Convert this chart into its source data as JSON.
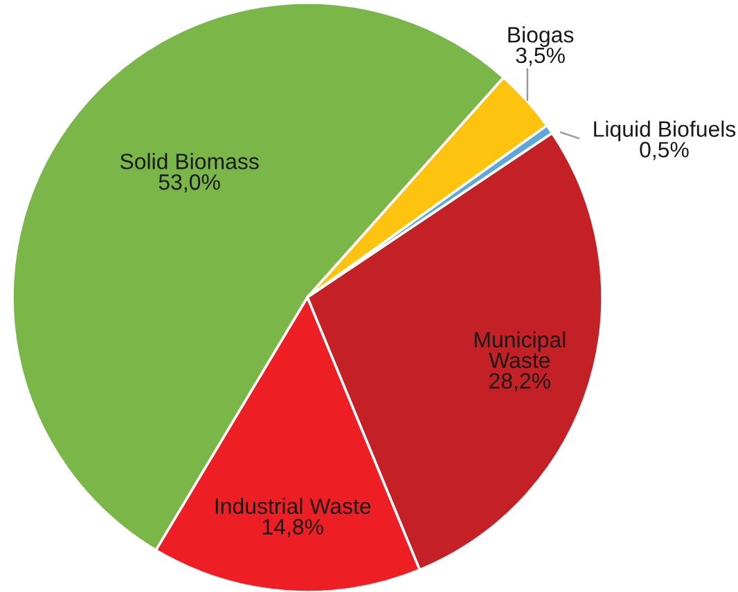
{
  "chart_data": {
    "type": "pie",
    "categories": [
      "Solid Biomass",
      "Biogas",
      "Liquid Biofuels",
      "Municipal Waste",
      "Industrial Waste"
    ],
    "values": [
      53.0,
      3.5,
      0.5,
      28.2,
      14.8
    ],
    "colors": [
      "#7ab648",
      "#fec30f",
      "#5ea7dc",
      "#c42127",
      "#ed1f24"
    ],
    "value_labels": [
      "53,0%",
      "3,5%",
      "0,5%",
      "28,2%",
      "14,8%"
    ]
  }
}
